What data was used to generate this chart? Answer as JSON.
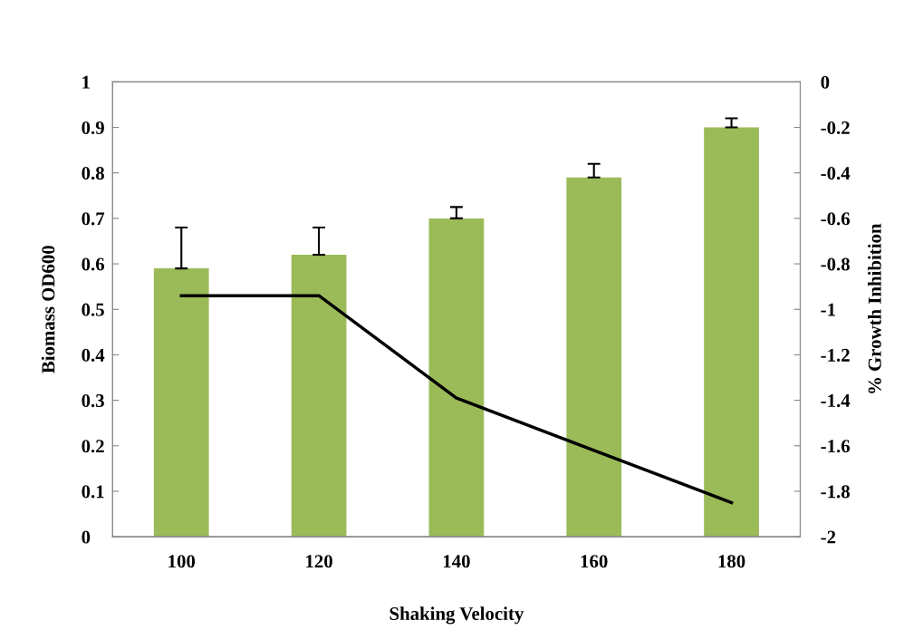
{
  "chart_data": {
    "type": "bar",
    "xlabel": "Shaking Velocity",
    "ylabel": "Biomass OD600",
    "y2label": "% Growth Inhibition",
    "categories": [
      "100",
      "120",
      "140",
      "160",
      "180"
    ],
    "series": [
      {
        "color": "#9bbb59",
        "values": [
          0.59,
          0.62,
          0.7,
          0.79,
          0.9
        ],
        "errors": [
          [
            0.59,
            0.68
          ],
          [
            0.62,
            0.68
          ],
          [
            0.7,
            0.725
          ],
          [
            0.79,
            0.82
          ],
          [
            0.9,
            0.92
          ]
        ]
      },
      {
        "type": "line",
        "color": "#000000",
        "axis": "y2",
        "values": [
          -0.94,
          -0.94,
          -1.39,
          -1.62,
          -1.85
        ]
      }
    ],
    "ylim": [
      0,
      1
    ],
    "yticks": [
      0,
      0.1,
      0.2,
      0.3,
      0.4,
      0.5,
      0.6,
      0.7,
      0.8,
      0.9,
      1
    ],
    "y2lim": [
      -2,
      0
    ],
    "y2ticks": [
      -2,
      -1.8,
      -1.6,
      -1.4,
      -1.2,
      -1,
      -0.8,
      -0.6,
      -0.4,
      -0.2,
      0
    ],
    "grid": false,
    "legend": false,
    "marker": "none",
    "line_style": "solid"
  }
}
